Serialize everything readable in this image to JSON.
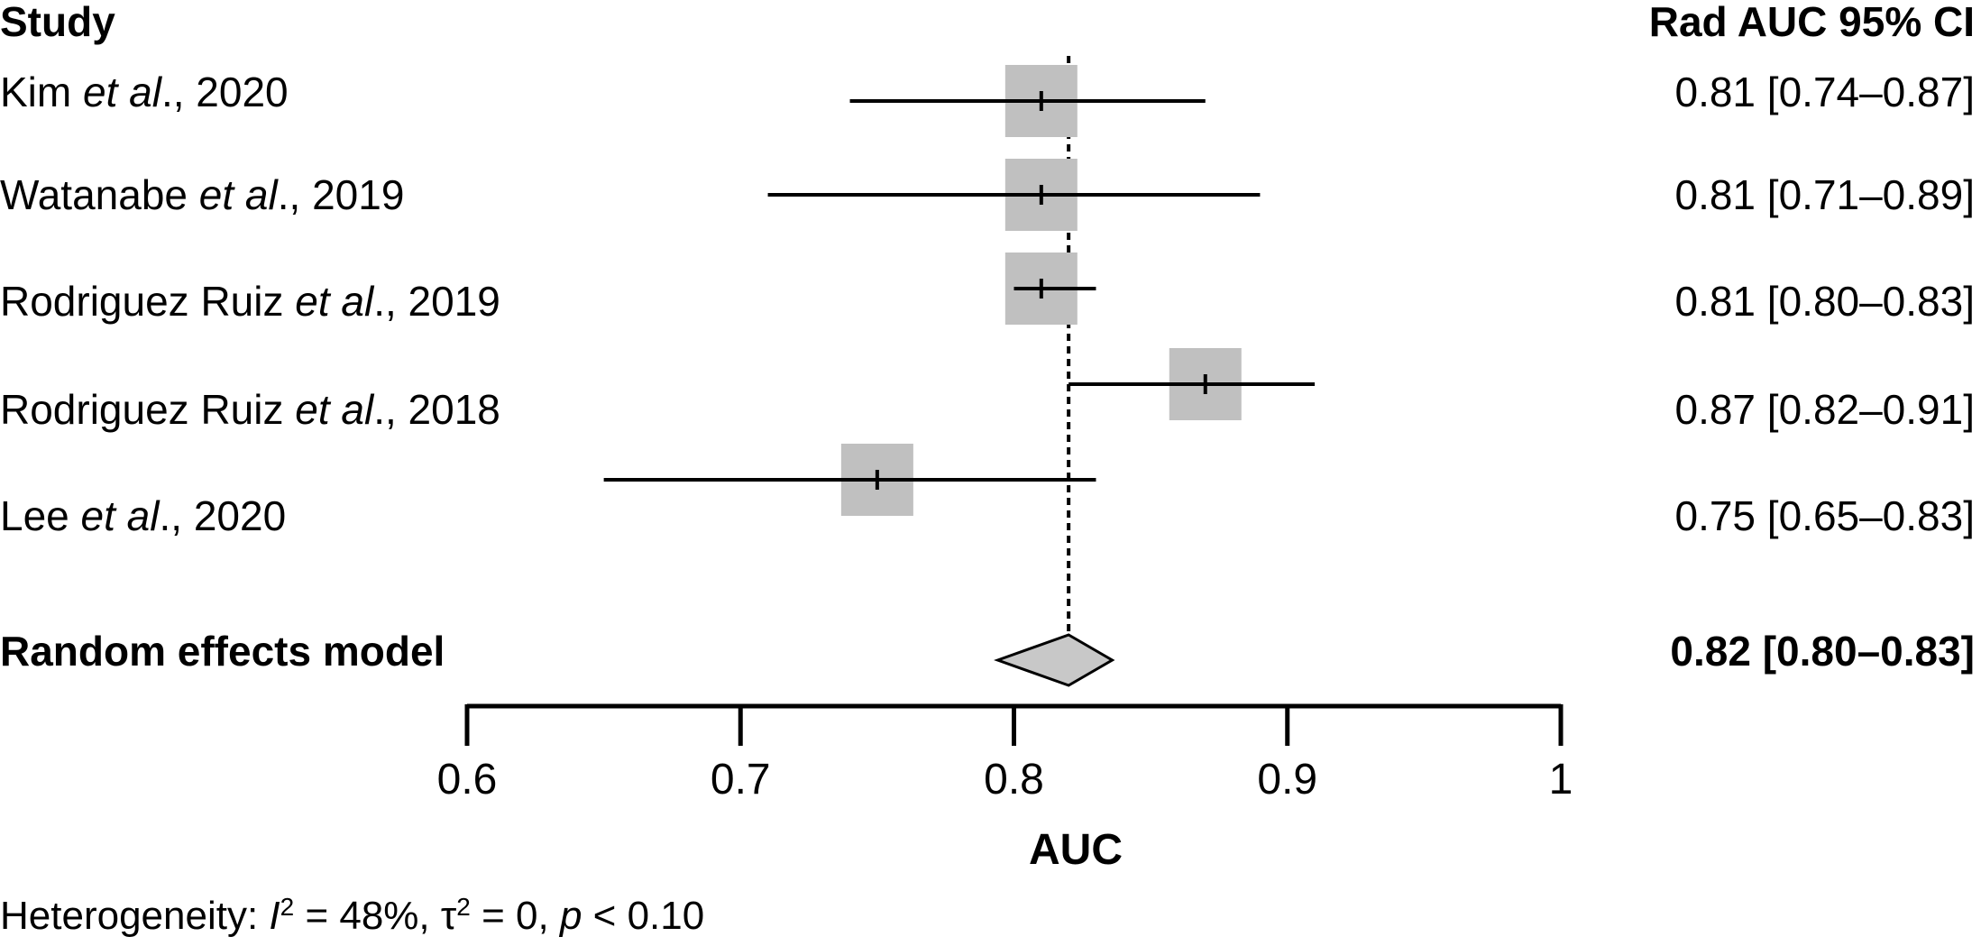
{
  "chart_data": {
    "type": "forest",
    "headers": {
      "study": "Study",
      "estimate": "Rad AUC 95% CI"
    },
    "studies": [
      {
        "name": "Kim",
        "et_al": "et al",
        "year_suffix": "., 2020",
        "auc": 0.81,
        "lower": 0.74,
        "upper": 0.87,
        "ci_text": "0.81 [0.74–0.87]",
        "weight": 1.0
      },
      {
        "name": "Watanabe",
        "et_al": "et al",
        "year_suffix": "., 2019",
        "auc": 0.81,
        "lower": 0.71,
        "upper": 0.89,
        "ci_text": "0.81 [0.71–0.89]",
        "weight": 1.0
      },
      {
        "name": "Rodriguez Ruiz",
        "et_al": "et al",
        "year_suffix": "., 2019",
        "auc": 0.81,
        "lower": 0.8,
        "upper": 0.83,
        "ci_text": "0.81 [0.80–0.83]",
        "weight": 1.0
      },
      {
        "name": "Rodriguez Ruiz",
        "et_al": "et al",
        "year_suffix": "., 2018",
        "auc": 0.87,
        "lower": 0.82,
        "upper": 0.91,
        "ci_text": "0.87 [0.82–0.91]",
        "weight": 1.0
      },
      {
        "name": "Lee",
        "et_al": "et al",
        "year_suffix": "., 2020",
        "auc": 0.75,
        "lower": 0.65,
        "upper": 0.83,
        "ci_text": "0.75 [0.65–0.83]",
        "weight": 1.0
      }
    ],
    "pooled": {
      "label": "Random effects model",
      "auc": 0.82,
      "lower": 0.8,
      "upper": 0.83,
      "ci_text": "0.82 [0.80–0.83]"
    },
    "xlim": [
      0.6,
      1
    ],
    "xticks": [
      0.6,
      0.7,
      0.8,
      0.9,
      1
    ],
    "xtick_labels": [
      "0.6",
      "0.7",
      "0.8",
      "0.9",
      "1"
    ],
    "xlabel": "AUC",
    "reference_line": 0.82,
    "heterogeneity": {
      "prefix": "Heterogeneity: ",
      "i2_symbol": "I",
      "i2_value": " = 48%, ",
      "tau_symbol": "τ",
      "tau_value": " = 0, ",
      "p_symbol": "p",
      "p_value": " < 0.10"
    },
    "colors": {
      "box": "#c0c0c0",
      "diamond": "#c8c8c8",
      "line": "#000000"
    }
  }
}
